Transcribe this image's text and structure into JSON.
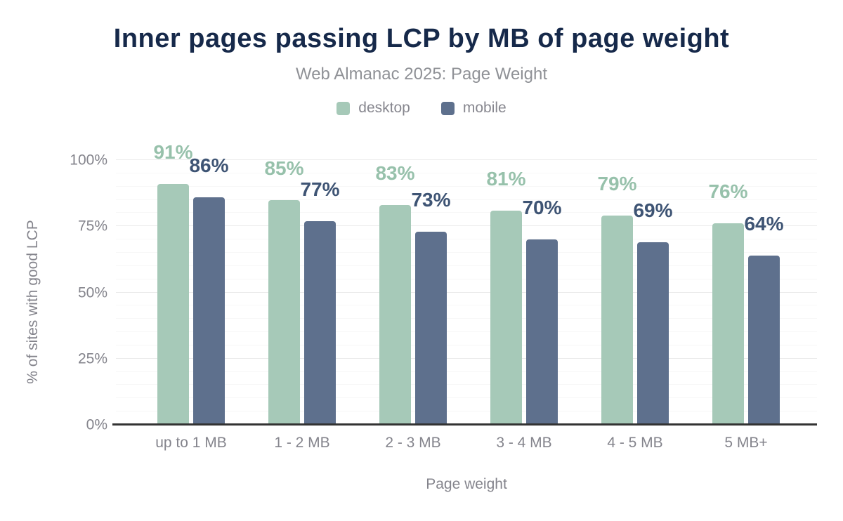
{
  "chart_data": {
    "type": "bar",
    "title": "Inner pages passing LCP by MB of page weight",
    "subtitle": "Web Almanac 2025: Page Weight",
    "categories": [
      "up to 1 MB",
      "1 - 2 MB",
      "2 - 3 MB",
      "3 - 4 MB",
      "4 - 5 MB",
      "5 MB+"
    ],
    "series": [
      {
        "name": "desktop",
        "color": "#a6c9b8",
        "label_color": "#97c1ab",
        "values": [
          91,
          85,
          83,
          81,
          79,
          76
        ]
      },
      {
        "name": "mobile",
        "color": "#5e708d",
        "label_color": "#3e5474",
        "values": [
          86,
          77,
          73,
          70,
          69,
          64
        ]
      }
    ],
    "value_suffix": "%",
    "xlabel": "Page weight",
    "ylabel": "% of sites with good LCP",
    "ylim": [
      0,
      100
    ],
    "yticks": [
      0,
      25,
      50,
      75,
      100
    ],
    "ytick_suffix": "%",
    "grid": {
      "on": true,
      "minor_step": 5,
      "major_step": 25
    },
    "legend_position": "top",
    "colors": {
      "title": "#16294a",
      "subtitle": "#8f9196",
      "axis_text": "#84848c",
      "baseline": "#333333",
      "grid_minor": "#f7f7f7",
      "grid_major": "#ebebeb"
    }
  }
}
